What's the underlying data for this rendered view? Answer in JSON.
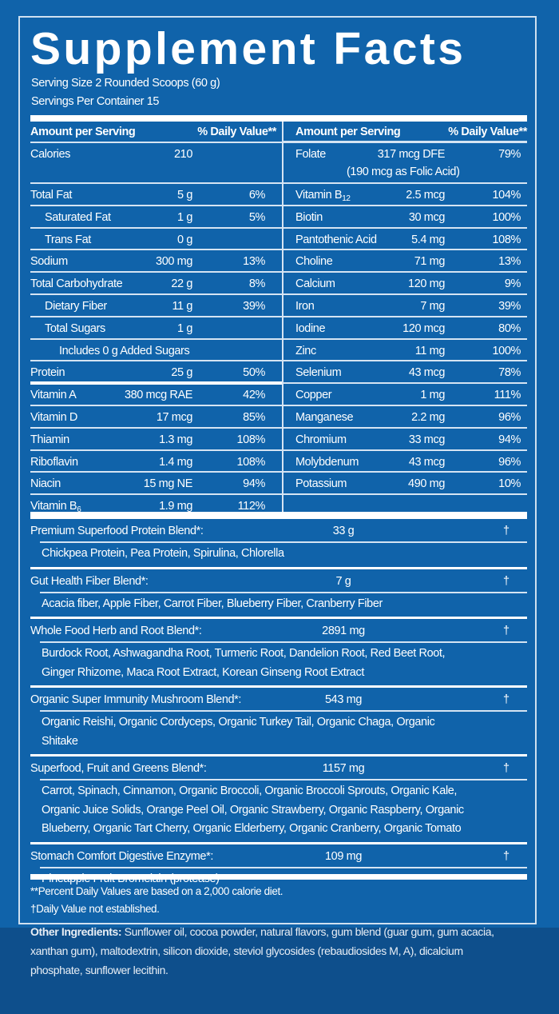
{
  "title": "Supplement Facts",
  "serving_size": "Serving Size 2 Rounded Scoops (60 g)",
  "servings_per_container": "Servings Per Container 15",
  "header": {
    "amount": "Amount per Serving",
    "dv": "% Daily Value**"
  },
  "left_rows": [
    {
      "name": "Calories",
      "amount": "210",
      "dv": ""
    },
    {
      "name": "Total Fat",
      "amount": "5 g",
      "dv": "6%"
    },
    {
      "name": "Saturated Fat",
      "amount": "1 g",
      "dv": "5%",
      "indent": 1
    },
    {
      "name": "Trans Fat",
      "amount": "0 g",
      "dv": "",
      "indent": 1
    },
    {
      "name": "Sodium",
      "amount": "300 mg",
      "dv": "13%"
    },
    {
      "name": "Total Carbohydrate",
      "amount": "22 g",
      "dv": "8%"
    },
    {
      "name": "Dietary Fiber",
      "amount": "11 g",
      "dv": "39%",
      "indent": 1
    },
    {
      "name": "Total Sugars",
      "amount": "1 g",
      "dv": "",
      "indent": 1
    },
    {
      "name": "Includes 0 g Added Sugars",
      "amount": "",
      "dv": "",
      "indent": 2
    },
    {
      "name": "Protein",
      "amount": "25 g",
      "dv": "50%"
    },
    {
      "name": "Vitamin A",
      "amount": "380 mcg RAE",
      "dv": "42%"
    },
    {
      "name": "Vitamin D",
      "amount": "17 mcg",
      "dv": "85%"
    },
    {
      "name": "Thiamin",
      "amount": "1.3 mg",
      "dv": "108%"
    },
    {
      "name": "Riboflavin",
      "amount": "1.4 mg",
      "dv": "108%"
    },
    {
      "name": "Niacin",
      "amount": "15 mg NE",
      "dv": "94%"
    },
    {
      "name": "Vitamin B",
      "name_sub": "6",
      "amount": "1.9 mg",
      "dv": "112%"
    }
  ],
  "right_rows": [
    {
      "name": "Folate",
      "amount": "317 mcg DFE",
      "dv": "79%",
      "note": "(190 mcg as Folic Acid)"
    },
    {
      "name": "Vitamin B",
      "name_sub": "12",
      "amount": "2.5 mcg",
      "dv": "104%"
    },
    {
      "name": "Biotin",
      "amount": "30 mcg",
      "dv": "100%"
    },
    {
      "name": "Pantothenic Acid",
      "amount": "5.4 mg",
      "dv": "108%"
    },
    {
      "name": "Choline",
      "amount": "71 mg",
      "dv": "13%"
    },
    {
      "name": "Calcium",
      "amount": "120 mg",
      "dv": "9%"
    },
    {
      "name": "Iron",
      "amount": "7 mg",
      "dv": "39%"
    },
    {
      "name": "Iodine",
      "amount": "120 mcg",
      "dv": "80%"
    },
    {
      "name": "Zinc",
      "amount": "11 mg",
      "dv": "100%"
    },
    {
      "name": "Selenium",
      "amount": "43 mcg",
      "dv": "78%"
    },
    {
      "name": "Copper",
      "amount": "1 mg",
      "dv": "111%"
    },
    {
      "name": "Manganese",
      "amount": "2.2 mg",
      "dv": "96%"
    },
    {
      "name": "Chromium",
      "amount": "33 mcg",
      "dv": "94%"
    },
    {
      "name": "Molybdenum",
      "amount": "43 mcg",
      "dv": "96%"
    },
    {
      "name": "Potassium",
      "amount": "490 mg",
      "dv": "10%"
    }
  ],
  "blends": [
    {
      "name": "Premium Superfood Protein Blend*:",
      "amount": "33 g",
      "dv": "†",
      "ingredients": [
        "Chickpea Protein, Pea Protein, Spirulina, Chlorella"
      ]
    },
    {
      "name": "Gut Health Fiber Blend*:",
      "amount": "7 g",
      "dv": "†",
      "ingredients": [
        "Acacia fiber, Apple Fiber, Carrot Fiber, Blueberry Fiber, Cranberry Fiber"
      ]
    },
    {
      "name": "Whole Food Herb and Root Blend*:",
      "amount": "2891 mg",
      "dv": "†",
      "ingredients": [
        "Burdock Root, Ashwagandha Root, Turmeric Root, Dandelion Root, Red Beet Root,",
        "Ginger Rhizome, Maca Root Extract, Korean Ginseng Root Extract"
      ]
    },
    {
      "name": "Organic Super Immunity Mushroom Blend*:",
      "amount": "543 mg",
      "dv": "†",
      "ingredients": [
        "Organic Reishi, Organic Cordyceps, Organic Turkey Tail, Organic Chaga, Organic",
        "Shitake"
      ]
    },
    {
      "name": "Superfood, Fruit and Greens Blend*:",
      "amount": "1157 mg",
      "dv": "†",
      "ingredients": [
        "Carrot, Spinach, Cinnamon, Organic Broccoli, Organic Broccoli Sprouts, Organic Kale,",
        "Organic Juice Solids, Orange Peel Oil, Organic Strawberry, Organic Raspberry, Organic",
        "Blueberry, Organic Tart Cherry, Organic Elderberry, Organic Cranberry, Organic Tomato"
      ]
    },
    {
      "name": "Stomach Comfort Digestive Enzyme*:",
      "amount": "109 mg",
      "dv": "†",
      "ingredients": [
        "Pineapple Fruit Bromelain (protease)"
      ]
    }
  ],
  "footnotes": [
    "**Percent Daily Values are based on a 2,000 calorie diet.",
    "†Daily Value not established."
  ],
  "other_ingredients": {
    "label": "Other Ingredients:",
    "text": " Sunflower oil, cocoa powder, natural flavors, gum blend (guar gum, gum acacia, xanthan gum), maltodextrin, silicon dioxide, steviol glycosides (rebaudiosides M, A), dicalcium phosphate, sunflower lecithin."
  },
  "colors": {
    "panel": "#1063aa",
    "background": "#0e4f8c",
    "text": "#ffffff"
  }
}
